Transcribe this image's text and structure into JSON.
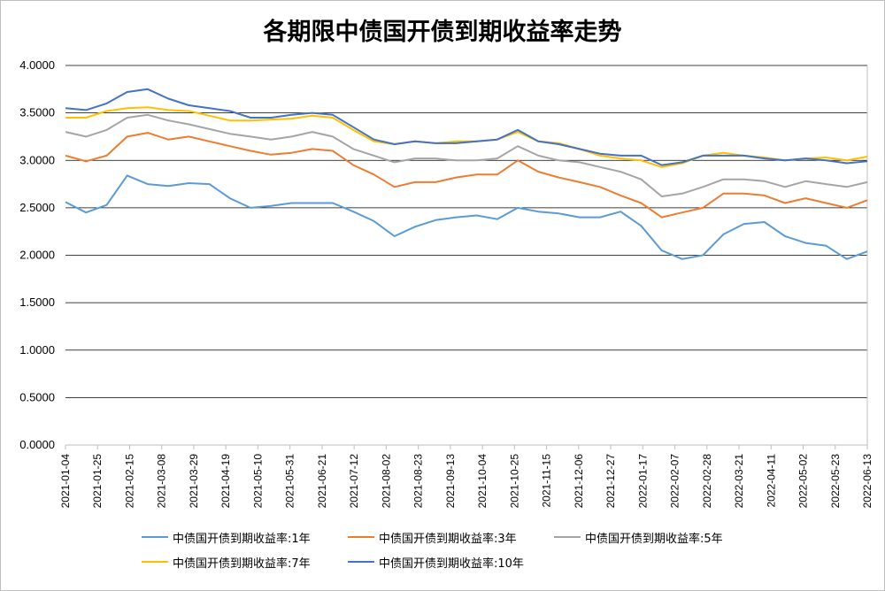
{
  "chart_data": {
    "type": "line",
    "title": "各期限中债国开债到期收益率走势",
    "xlabel": "",
    "ylabel": "",
    "ylim": [
      0,
      4
    ],
    "yticks": [
      "0.0000",
      "0.5000",
      "1.0000",
      "1.5000",
      "2.0000",
      "2.5000",
      "3.0000",
      "3.5000",
      "4.0000"
    ],
    "x_tick_labels": [
      "2021-01-04",
      "2021-01-25",
      "2021-02-15",
      "2021-03-08",
      "2021-03-29",
      "2021-04-19",
      "2021-05-10",
      "2021-05-31",
      "2021-06-21",
      "2021-07-12",
      "2021-08-02",
      "2021-08-23",
      "2021-09-13",
      "2021-10-04",
      "2021-10-25",
      "2021-11-15",
      "2021-12-06",
      "2021-12-27",
      "2022-01-17",
      "2022-02-07",
      "2022-02-28",
      "2022-03-21",
      "2022-04-11",
      "2022-05-02",
      "2022-05-23",
      "2022-06-13"
    ],
    "grid": "horizontal",
    "legend_position": "bottom",
    "series": [
      {
        "name": "中债国开债到期收益率:1年",
        "color": "#5b9bd5",
        "values": [
          2.56,
          2.45,
          2.53,
          2.84,
          2.75,
          2.73,
          2.76,
          2.75,
          2.6,
          2.5,
          2.52,
          2.55,
          2.55,
          2.55,
          2.46,
          2.36,
          2.2,
          2.3,
          2.37,
          2.4,
          2.42,
          2.38,
          2.5,
          2.46,
          2.44,
          2.4,
          2.4,
          2.46,
          2.31,
          2.05,
          1.96,
          2.0,
          2.22,
          2.33,
          2.35,
          2.2,
          2.13,
          2.1,
          1.96,
          2.04
        ]
      },
      {
        "name": "中债国开债到期收益率:3年",
        "color": "#ed7d31",
        "values": [
          3.05,
          2.99,
          3.05,
          3.25,
          3.29,
          3.22,
          3.25,
          3.2,
          3.15,
          3.1,
          3.06,
          3.08,
          3.12,
          3.1,
          2.95,
          2.85,
          2.72,
          2.77,
          2.77,
          2.82,
          2.85,
          2.85,
          3.0,
          2.88,
          2.82,
          2.77,
          2.72,
          2.63,
          2.55,
          2.4,
          2.45,
          2.5,
          2.65,
          2.65,
          2.63,
          2.55,
          2.6,
          2.55,
          2.5,
          2.58
        ]
      },
      {
        "name": "中债国开债到期收益率:5年",
        "color": "#a5a5a5",
        "values": [
          3.3,
          3.25,
          3.32,
          3.45,
          3.48,
          3.42,
          3.38,
          3.33,
          3.28,
          3.25,
          3.22,
          3.25,
          3.3,
          3.25,
          3.12,
          3.05,
          2.98,
          3.02,
          3.02,
          3.0,
          3.0,
          3.02,
          3.15,
          3.05,
          3.0,
          2.98,
          2.93,
          2.88,
          2.8,
          2.62,
          2.65,
          2.72,
          2.8,
          2.8,
          2.78,
          2.72,
          2.78,
          2.75,
          2.72,
          2.77
        ]
      },
      {
        "name": "中债国开债到期收益率:7年",
        "color": "#ffc000",
        "values": [
          3.45,
          3.45,
          3.52,
          3.55,
          3.56,
          3.53,
          3.52,
          3.47,
          3.42,
          3.42,
          3.43,
          3.44,
          3.47,
          3.45,
          3.32,
          3.2,
          3.17,
          3.2,
          3.18,
          3.2,
          3.2,
          3.22,
          3.3,
          3.2,
          3.18,
          3.12,
          3.05,
          3.02,
          3.0,
          2.93,
          2.97,
          3.05,
          3.08,
          3.05,
          3.03,
          3.0,
          3.02,
          3.03,
          3.0,
          3.04
        ]
      },
      {
        "name": "中债国开债到期收益率:10年",
        "color": "#4472c4",
        "values": [
          3.55,
          3.53,
          3.6,
          3.72,
          3.75,
          3.65,
          3.58,
          3.55,
          3.52,
          3.45,
          3.45,
          3.48,
          3.5,
          3.48,
          3.35,
          3.22,
          3.17,
          3.2,
          3.18,
          3.18,
          3.2,
          3.22,
          3.32,
          3.2,
          3.17,
          3.12,
          3.07,
          3.05,
          3.05,
          2.95,
          2.98,
          3.05,
          3.05,
          3.05,
          3.02,
          3.0,
          3.02,
          3.0,
          2.97,
          2.99
        ]
      }
    ]
  }
}
